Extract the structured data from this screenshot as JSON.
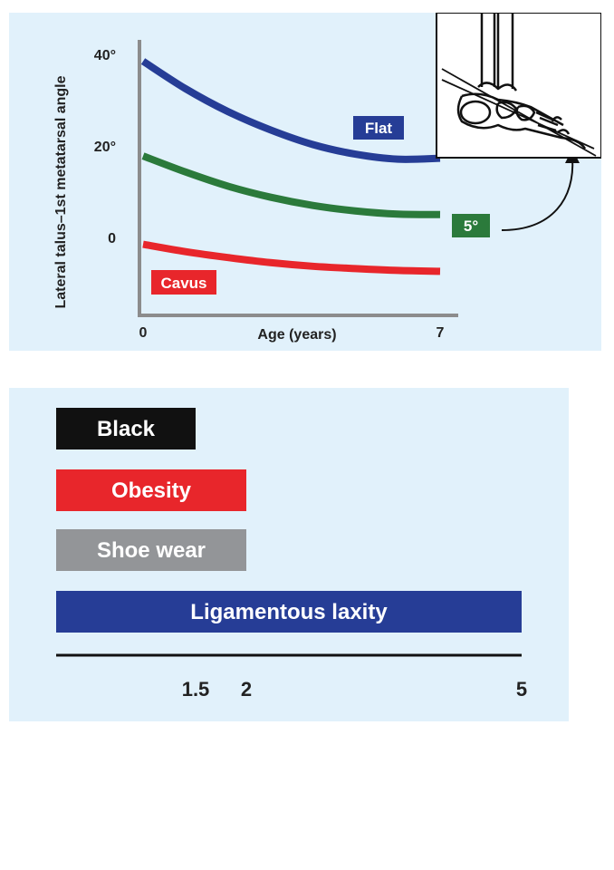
{
  "chart_data": [
    {
      "type": "line",
      "title": "",
      "xlabel": "Age (years)",
      "ylabel": "Lateral talus–1st metatarsal angle",
      "xlim": [
        0,
        7
      ],
      "ylim": [
        -15,
        42
      ],
      "x_ticks": [
        "0",
        "7"
      ],
      "y_ticks": [
        {
          "value": 40,
          "label": "40°"
        },
        {
          "value": 20,
          "label": "20°"
        },
        {
          "value": 0,
          "label": "0"
        }
      ],
      "series": [
        {
          "name": "Flat",
          "color": "#263d96",
          "x": [
            0,
            1,
            2,
            3,
            4,
            5,
            6,
            7
          ],
          "y": [
            38.5,
            32.5,
            27.5,
            23.5,
            20.3,
            18.2,
            17.1,
            17.3
          ]
        },
        {
          "name": "5°",
          "color": "#2b7a3b",
          "x": [
            0,
            1,
            2,
            3,
            4,
            5,
            6,
            7
          ],
          "y": [
            17.8,
            14.3,
            11.2,
            8.8,
            7.0,
            5.8,
            5.1,
            5.0
          ]
        },
        {
          "name": "Cavus",
          "color": "#e8262b",
          "x": [
            0,
            1,
            2,
            3,
            4,
            5,
            6,
            7
          ],
          "y": [
            -1.5,
            -3.1,
            -4.4,
            -5.5,
            -6.3,
            -6.8,
            -7.2,
            -7.4
          ]
        }
      ],
      "inset": "foot-radiograph-sketch"
    },
    {
      "type": "bar",
      "orientation": "horizontal",
      "categories": [
        "Black",
        "Obesity",
        "Shoe wear",
        "Ligamentous laxity"
      ],
      "values": [
        1.5,
        2,
        2,
        5
      ],
      "colors": [
        "#111111",
        "#e8262b",
        "#939598",
        "#263d96"
      ],
      "x_ticks": [
        "1.5",
        "2",
        "5"
      ],
      "xlim": [
        0,
        5
      ]
    }
  ]
}
